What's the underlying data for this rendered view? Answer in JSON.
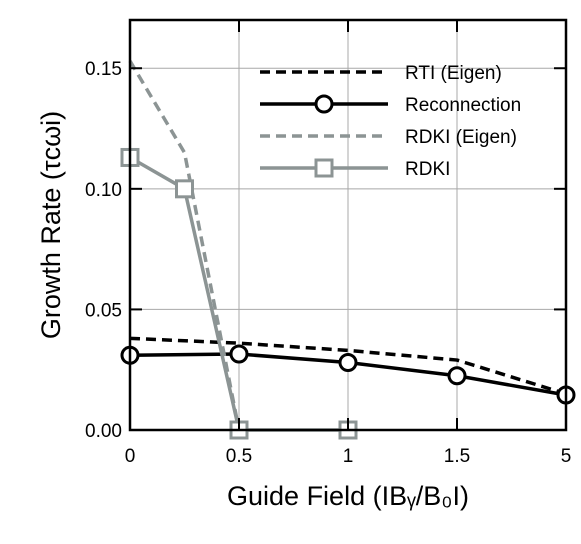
{
  "chart_data": {
    "type": "line",
    "xlabel": "Guide Field (IBᵧ/B₀I)",
    "ylabel": "Growth Rate (τcωi)",
    "x_tick_labels": [
      "0",
      "0.5",
      "1",
      "1.5",
      "5"
    ],
    "y_tick_labels": [
      "0.00",
      "0.05",
      "0.10",
      "0.15"
    ],
    "y_ticks": [
      0.0,
      0.05,
      0.1,
      0.15
    ],
    "ylim": [
      0.0,
      0.17
    ],
    "grid": true,
    "legend_position": "top-right",
    "series": [
      {
        "name": "RTI (Eigen)",
        "color": "#000000",
        "style": "dashed",
        "marker": "none",
        "points": [
          [
            0,
            0.038
          ],
          [
            0.5,
            0.036
          ],
          [
            1,
            0.033
          ],
          [
            1.5,
            0.029
          ],
          [
            5,
            0.015
          ]
        ]
      },
      {
        "name": "Reconnection",
        "color": "#000000",
        "style": "solid",
        "marker": "circle",
        "points": [
          [
            0,
            0.031
          ],
          [
            0.5,
            0.0315
          ],
          [
            1,
            0.028
          ],
          [
            1.5,
            0.0225
          ],
          [
            5,
            0.0145
          ]
        ]
      },
      {
        "name": "RDKI (Eigen)",
        "color": "#8c9494",
        "style": "dashed",
        "marker": "none",
        "points": [
          [
            0,
            0.153
          ],
          [
            0.25,
            0.115
          ],
          [
            0.5,
            0.0
          ]
        ]
      },
      {
        "name": "RDKI",
        "color": "#8c9494",
        "style": "solid",
        "marker": "square",
        "points": [
          [
            0,
            0.113
          ],
          [
            0.25,
            0.1
          ],
          [
            0.5,
            0.0
          ],
          [
            1,
            0.0
          ]
        ]
      }
    ]
  }
}
